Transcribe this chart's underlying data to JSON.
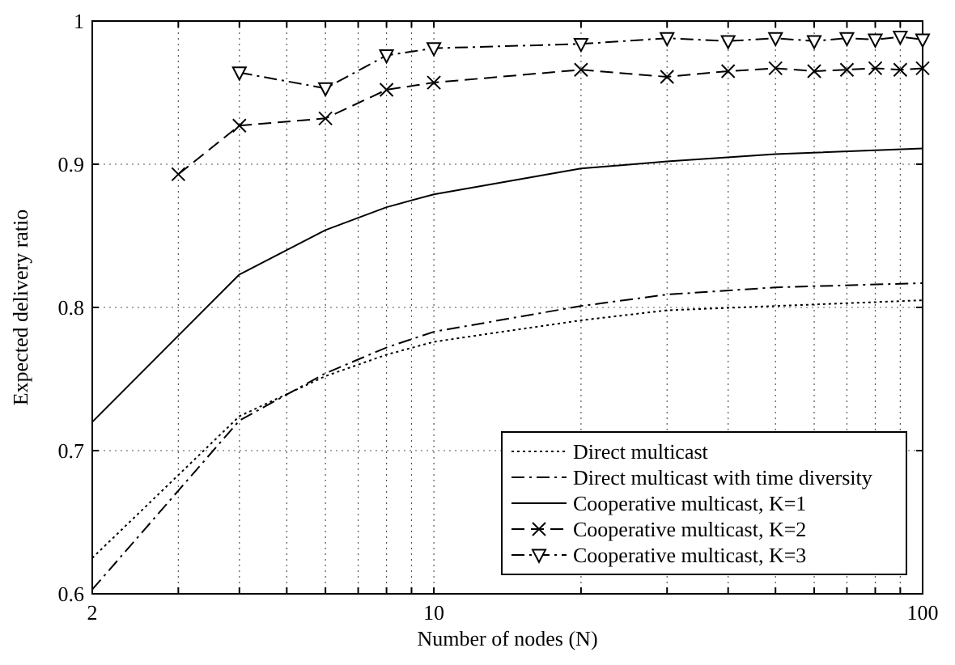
{
  "chart_data": {
    "type": "line",
    "xlabel": "Number of nodes (N)",
    "ylabel": "Expected delivery ratio",
    "log": "x",
    "xlim": [
      2,
      100
    ],
    "ylim": [
      0.6,
      1
    ],
    "xticks": [
      2,
      {
        "value": 3,
        "label": null
      },
      {
        "value": 4,
        "label": null
      },
      {
        "value": 5,
        "label": null
      },
      {
        "value": 6,
        "label": null
      },
      {
        "value": 7,
        "label": null
      },
      {
        "value": 8,
        "label": null
      },
      {
        "value": 9,
        "label": null
      },
      10,
      {
        "value": 20,
        "label": null
      },
      {
        "value": 30,
        "label": null
      },
      {
        "value": 40,
        "label": null
      },
      {
        "value": 50,
        "label": null
      },
      {
        "value": 60,
        "label": null
      },
      {
        "value": 70,
        "label": null
      },
      {
        "value": 80,
        "label": null
      },
      {
        "value": 90,
        "label": null
      },
      100
    ],
    "yticks": [
      0.6,
      0.7,
      0.8,
      0.9,
      1
    ],
    "grid": true,
    "legend": "bottom right",
    "series": [
      {
        "name": "Direct multicast",
        "color": "#000000",
        "line_style": "dotted",
        "marker": "none",
        "x": [
          2,
          4,
          6,
          8,
          10,
          20,
          30,
          50,
          100
        ],
        "values": [
          0.625,
          0.724,
          0.752,
          0.767,
          0.776,
          0.791,
          0.798,
          0.801,
          0.805
        ]
      },
      {
        "name": "Direct multicast with time diversity",
        "color": "#000000",
        "line_style": "dashdot",
        "marker": "none",
        "x": [
          2,
          4,
          6,
          8,
          10,
          20,
          30,
          50,
          100
        ],
        "values": [
          0.603,
          0.721,
          0.754,
          0.772,
          0.783,
          0.801,
          0.809,
          0.814,
          0.817
        ]
      },
      {
        "name": "Cooperative multicast, K=1",
        "color": "#000000",
        "line_style": "solid",
        "marker": "none",
        "x": [
          2,
          4,
          6,
          8,
          10,
          20,
          30,
          50,
          100
        ],
        "values": [
          0.72,
          0.823,
          0.854,
          0.87,
          0.879,
          0.897,
          0.902,
          0.907,
          0.911
        ]
      },
      {
        "name": "Cooperative multicast, K=2",
        "color": "#000000",
        "line_style": "dashed",
        "marker": "cross",
        "x": [
          3,
          4,
          6,
          8,
          10,
          20,
          30,
          40,
          50,
          60,
          70,
          80,
          90,
          100
        ],
        "values": [
          0.893,
          0.927,
          0.932,
          0.952,
          0.957,
          0.966,
          0.961,
          0.965,
          0.967,
          0.965,
          0.966,
          0.967,
          0.966,
          0.967
        ]
      },
      {
        "name": "Cooperative multicast, K=3",
        "color": "#000000",
        "line_style": "dashdot",
        "marker": "triangle",
        "x": [
          4,
          6,
          8,
          10,
          20,
          30,
          40,
          50,
          60,
          70,
          80,
          90,
          100
        ],
        "values": [
          0.964,
          0.953,
          0.976,
          0.981,
          0.984,
          0.988,
          0.986,
          0.988,
          0.986,
          0.988,
          0.987,
          0.989,
          0.987
        ]
      }
    ]
  }
}
